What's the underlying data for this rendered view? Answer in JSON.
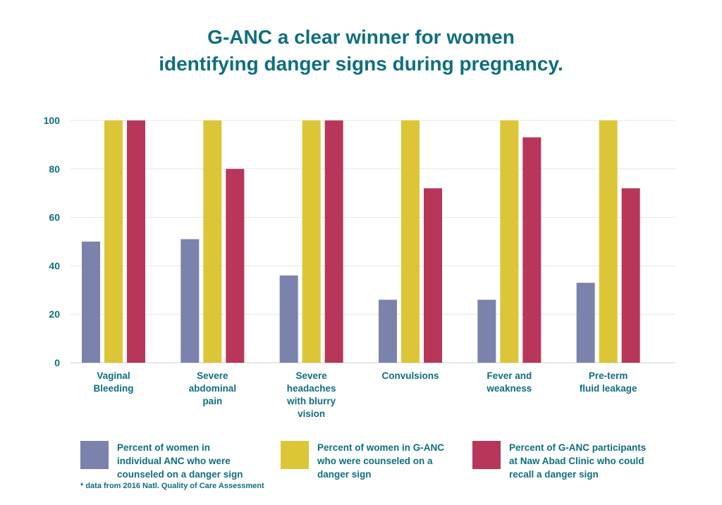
{
  "title_lines": [
    "G-ANC a clear winner for women",
    "identifying danger signs during pregnancy."
  ],
  "chart_data": {
    "type": "bar",
    "categories": [
      [
        "Vaginal",
        "Bleeding"
      ],
      [
        "Severe",
        "abdominal",
        "pain"
      ],
      [
        "Severe",
        "headaches",
        "with blurry",
        "vision"
      ],
      [
        "Convulsions"
      ],
      [
        "Fever and",
        "weakness"
      ],
      [
        "Pre-term",
        "fluid leakage"
      ]
    ],
    "series": [
      {
        "name": "Percent of women in individual ANC who were counseled on a danger sign",
        "color": "#7b82ab",
        "values": [
          50,
          51,
          36,
          26,
          26,
          33
        ]
      },
      {
        "name": "Percent of women in G-ANC who were counseled on a danger sign",
        "color": "#dcc537",
        "values": [
          100,
          100,
          100,
          100,
          100,
          100
        ]
      },
      {
        "name": "Percent of G-ANC participants at Naw Abad Clinic who could recall a danger sign",
        "color": "#b7365a",
        "values": [
          100,
          80,
          100,
          72,
          93,
          72
        ]
      }
    ],
    "ylim": [
      0,
      100
    ],
    "yticks": [
      0,
      20,
      40,
      60,
      80,
      100
    ],
    "grid": true,
    "legend_position": "bottom"
  },
  "legend": [
    {
      "lines": [
        "Percent of women in",
        "individual ANC who were",
        "counseled on a danger sign"
      ]
    },
    {
      "lines": [
        "Percent of women in G-ANC",
        "who were counseled on a",
        "danger sign"
      ]
    },
    {
      "lines": [
        "Percent of G-ANC participants",
        "at Naw Abad Clinic who could",
        "recall a danger sign"
      ]
    }
  ],
  "footnote": "* data from 2016 Natl. Quality of Care Assessment"
}
